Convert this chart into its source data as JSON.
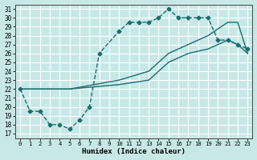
{
  "xlabel": "Humidex (Indice chaleur)",
  "background_color": "#c8e8e8",
  "grid_color": "#ffffff",
  "line_color": "#1a6e6e",
  "xlim": [
    -0.5,
    23.5
  ],
  "ylim": [
    16.5,
    31.5
  ],
  "xticks": [
    0,
    1,
    2,
    3,
    4,
    5,
    6,
    7,
    8,
    9,
    10,
    11,
    12,
    13,
    14,
    15,
    16,
    17,
    18,
    19,
    20,
    21,
    22,
    23
  ],
  "yticks": [
    17,
    18,
    19,
    20,
    21,
    22,
    23,
    24,
    25,
    26,
    27,
    28,
    29,
    30,
    31
  ],
  "curve1_x": [
    0,
    1,
    2,
    3,
    4,
    5,
    6,
    7,
    8,
    10,
    11,
    12,
    13,
    14,
    15,
    16,
    17,
    18,
    19,
    20,
    21,
    22,
    23
  ],
  "curve1_y": [
    22,
    19.5,
    19.5,
    18,
    18,
    17.5,
    18.5,
    20,
    26,
    28.5,
    29.5,
    29.5,
    29.5,
    30,
    31,
    30,
    30,
    30,
    30,
    27.5,
    27.5,
    27,
    26.5
  ],
  "curve2_x": [
    0,
    5,
    10,
    13,
    15,
    17,
    19,
    21,
    22,
    23
  ],
  "curve2_y": [
    22,
    22,
    23,
    24,
    26,
    27,
    28,
    29.5,
    29.5,
    26
  ],
  "curve3_x": [
    0,
    5,
    10,
    13,
    15,
    17,
    19,
    21,
    22,
    23
  ],
  "curve3_y": [
    22,
    22,
    22.5,
    23,
    25,
    26,
    26.5,
    27.5,
    27,
    26
  ],
  "linewidth": 1.0,
  "markersize": 2.5
}
